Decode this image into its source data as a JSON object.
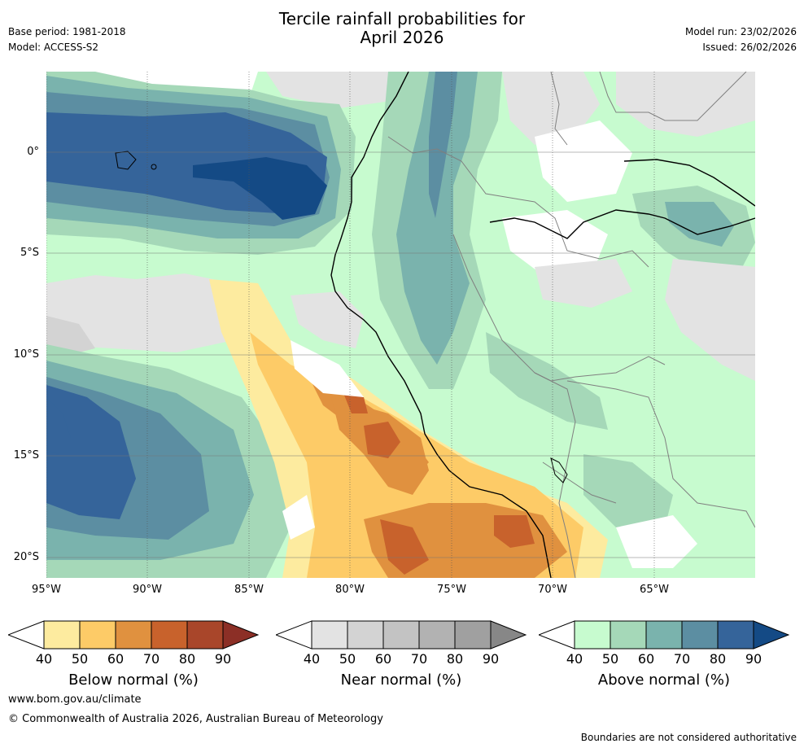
{
  "header": {
    "title_line1": "Tercile rainfall probabilities for",
    "title_line2": "April 2026",
    "base_period": "Base period: 1981-2018",
    "model": "Model: ACCESS-S2",
    "model_run": "Model run: 23/02/2026",
    "issued": "Issued: 26/02/2026"
  },
  "axes": {
    "lat_labels": [
      "0°",
      "5°S",
      "10°S",
      "15°S",
      "20°S"
    ],
    "lon_labels": [
      "95°W",
      "90°W",
      "85°W",
      "80°W",
      "75°W",
      "70°W",
      "65°W"
    ]
  },
  "colorbars": [
    {
      "title": "Below normal (%)",
      "ticks": [
        "40",
        "50",
        "60",
        "70",
        "80",
        "90"
      ],
      "colors": [
        "#ffffff",
        "#fdeb9f",
        "#fdcb67",
        "#e0913f",
        "#c8622c",
        "#a9462a",
        "#8c2f26"
      ]
    },
    {
      "title": "Near normal (%)",
      "ticks": [
        "40",
        "50",
        "60",
        "70",
        "80",
        "90"
      ],
      "colors": [
        "#ffffff",
        "#e3e3e3",
        "#d3d3d3",
        "#c3c3c3",
        "#b2b2b2",
        "#a0a0a0",
        "#878787"
      ]
    },
    {
      "title": "Above normal (%)",
      "ticks": [
        "40",
        "50",
        "60",
        "70",
        "80",
        "90"
      ],
      "colors": [
        "#ffffff",
        "#c7fbcf",
        "#a5d8b8",
        "#7ab3ad",
        "#5c8ea2",
        "#35649a",
        "#144a85"
      ]
    }
  ],
  "footer": {
    "website": "www.bom.gov.au/climate",
    "copyright": "© Commonwealth of Australia 2026, Australian Bureau of Meteorology",
    "disclaimer": "Boundaries are not considered authoritative"
  }
}
